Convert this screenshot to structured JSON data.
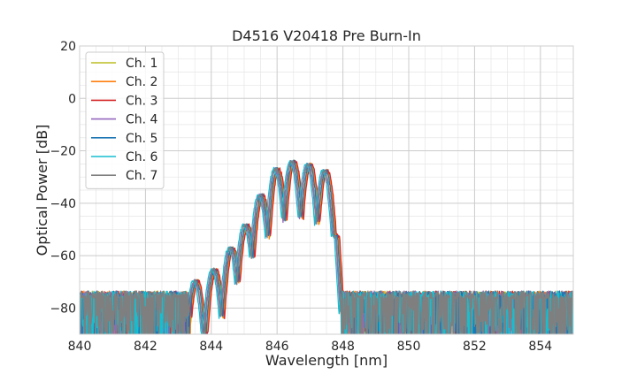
{
  "chart_data": {
    "type": "line",
    "title": "D4516 V20418 Pre Burn-In",
    "xlabel": "Wavelength [nm]",
    "ylabel": "Optical Power [dB]",
    "xlim": [
      840,
      855
    ],
    "ylim": [
      -90,
      20
    ],
    "x_ticks": [
      840,
      842,
      844,
      846,
      848,
      850,
      852,
      854
    ],
    "x_tick_labels": [
      "840",
      "842",
      "844",
      "846",
      "848",
      "850",
      "852",
      "854"
    ],
    "y_ticks": [
      20,
      0,
      -20,
      -40,
      -60,
      -80
    ],
    "y_tick_labels": [
      "20",
      "0",
      "−20",
      "−40",
      "−60",
      "−80"
    ],
    "grid": true,
    "legend_position": "upper-left",
    "noise_floor_db": -75,
    "envelope_x": [
      840,
      843.3,
      843.6,
      844.0,
      844.4,
      844.7,
      844.95,
      845.2,
      845.5,
      845.85,
      846.15,
      846.4,
      846.6,
      846.9,
      847.2,
      847.5,
      847.8,
      848.0,
      855
    ],
    "envelope_y": [
      -72,
      -71,
      -69,
      -66,
      -61,
      -54,
      -50,
      -44,
      -36,
      -28,
      -25,
      -24,
      -24,
      -25,
      -26,
      -28,
      -31,
      -72,
      -72
    ],
    "series": [
      {
        "name": "Ch. 1",
        "color": "#bcbd22",
        "shift_nm": 0.08
      },
      {
        "name": "Ch. 2",
        "color": "#ff7f0e",
        "shift_nm": 0.06
      },
      {
        "name": "Ch. 3",
        "color": "#d62728",
        "shift_nm": 0.1
      },
      {
        "name": "Ch. 4",
        "color": "#9467bd",
        "shift_nm": -0.02
      },
      {
        "name": "Ch. 5",
        "color": "#1f77b4",
        "shift_nm": 0.04
      },
      {
        "name": "Ch. 6",
        "color": "#17becf",
        "shift_nm": -0.06
      },
      {
        "name": "Ch. 7",
        "color": "#7f7f7f",
        "shift_nm": 0.0
      }
    ]
  }
}
